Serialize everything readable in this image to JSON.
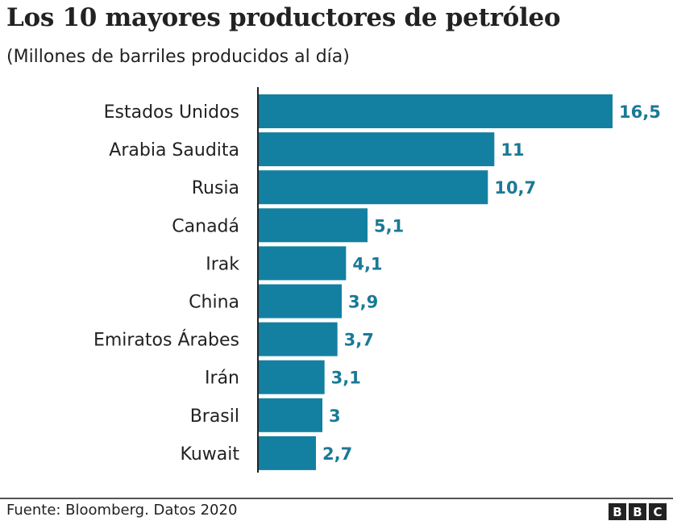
{
  "title": "Los 10 mayores productores de petróleo",
  "subtitle": "(Millones de barriles producidos al día)",
  "source": "Fuente: Bloomberg. Datos 2020",
  "logo": "BBC",
  "colors": {
    "bar": "#1380a1",
    "value_label": "#1a7a96",
    "text": "#222222"
  },
  "chart_data": {
    "type": "bar",
    "orientation": "horizontal",
    "title": "Los 10 mayores productores de petróleo",
    "subtitle": "(Millones de barriles producidos al día)",
    "categories": [
      "Estados Unidos",
      "Arabia Saudita",
      "Rusia",
      "Canadá",
      "Irak",
      "China",
      "Emiratos Árabes",
      "Irán",
      "Brasil",
      "Kuwait"
    ],
    "values": [
      16.5,
      11,
      10.7,
      5.1,
      4.1,
      3.9,
      3.7,
      3.1,
      3,
      2.7
    ],
    "value_labels": [
      "16,5",
      "11",
      "10,7",
      "5,1",
      "4,1",
      "3,9",
      "3,7",
      "3,1",
      "3",
      "2,7"
    ],
    "xlim": [
      0,
      16.5
    ],
    "grid": false,
    "legend": "none"
  }
}
